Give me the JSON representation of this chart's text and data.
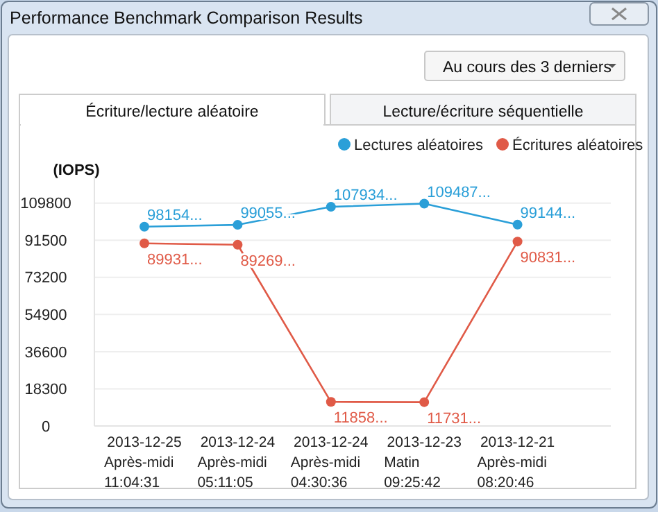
{
  "chart_data": {
    "type": "line",
    "title": "Performance Benchmark Comparison Results",
    "ylabel": "(IOPS)",
    "annotations": [
      "Au cours des 3 derniers",
      "Écriture/lecture aléatoire",
      "Lecture/écriture séquentielle"
    ],
    "categories": [
      "2013-12-25\nAprès-midi\n11:04:31",
      "2013-12-24\nAprès-midi\n05:11:05",
      "2013-12-24\nAprès-midi\n04:30:36",
      "2013-12-23\nMatin\n09:25:42",
      "2013-12-21\nAprès-midi\n08:20:46"
    ],
    "series": [
      {
        "name": "Lectures aléatoires",
        "color": "#2a9fd8",
        "values": [
          98154,
          99055,
          107934,
          109487,
          99144
        ],
        "value_labels": [
          "98154...",
          "99055...",
          "107934...",
          "109487...",
          "99144..."
        ]
      },
      {
        "name": "Écritures aléatoires",
        "color": "#e05a47",
        "values": [
          89931,
          89269,
          11858,
          11731,
          90831
        ],
        "value_labels": [
          "89931...",
          "89269...",
          "11858...",
          "11731...",
          "90831..."
        ]
      }
    ],
    "ylim": [
      0,
      123000
    ],
    "yticks": [
      0,
      18300,
      36600,
      54900,
      73200,
      91500,
      109800
    ],
    "grid": "y",
    "legend": "top right",
    "marker": "circle",
    "line_style": "solid"
  }
}
